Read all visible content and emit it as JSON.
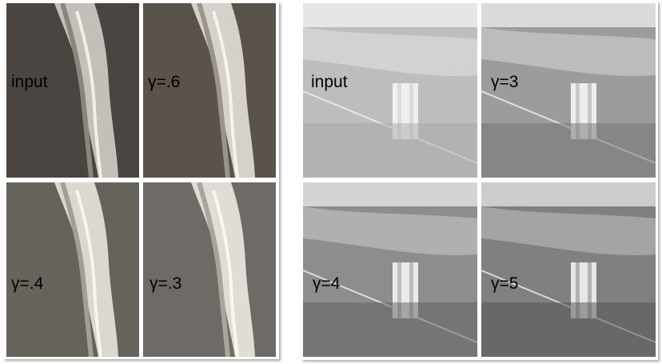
{
  "mri_panels": [
    {
      "label": "input"
    },
    {
      "label": "γ=.6"
    },
    {
      "label": "γ=.4"
    },
    {
      "label": "γ=.3"
    }
  ],
  "aerial_panels": [
    {
      "label": "input"
    },
    {
      "label": "γ=3"
    },
    {
      "label": "γ=4"
    },
    {
      "label": "γ=5"
    }
  ],
  "colors": {
    "mri_input_bg": "#4a4540",
    "mri_g06_bg": "#5a534c",
    "mri_g04_bg": "#66625c",
    "mri_g03_bg": "#6e6b66",
    "aerial_input": "#bdbdbd",
    "aerial_g3": "#9c9c9c",
    "aerial_g4": "#8d8d8d",
    "aerial_g5": "#808080"
  }
}
